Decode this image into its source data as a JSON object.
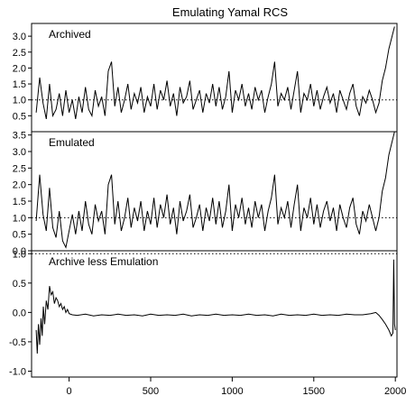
{
  "chart_data": {
    "type": "line",
    "title": "Emulating Yamal RCS",
    "x_range": [
      -230,
      2010
    ],
    "x_ticks": [
      0,
      500,
      1000,
      1500,
      2000
    ],
    "panels": [
      {
        "label": "Archived",
        "ylim": [
          0.0,
          3.4
        ],
        "y_ticks": [
          0.5,
          1.0,
          1.5,
          2.0,
          2.5,
          3.0
        ],
        "reference_line": 1.0,
        "series": {
          "x": [
            -202,
            -180,
            -160,
            -140,
            -120,
            -100,
            -80,
            -60,
            -40,
            -20,
            0,
            20,
            40,
            60,
            80,
            100,
            120,
            140,
            160,
            180,
            200,
            220,
            240,
            260,
            280,
            300,
            320,
            340,
            360,
            380,
            400,
            420,
            440,
            460,
            480,
            500,
            520,
            540,
            560,
            580,
            600,
            620,
            640,
            660,
            680,
            700,
            720,
            740,
            760,
            780,
            800,
            820,
            840,
            860,
            880,
            900,
            920,
            940,
            960,
            980,
            1000,
            1020,
            1040,
            1060,
            1080,
            1100,
            1120,
            1140,
            1160,
            1180,
            1200,
            1220,
            1240,
            1260,
            1280,
            1300,
            1320,
            1340,
            1360,
            1380,
            1400,
            1420,
            1440,
            1460,
            1480,
            1500,
            1520,
            1540,
            1560,
            1580,
            1600,
            1620,
            1640,
            1660,
            1680,
            1700,
            1720,
            1740,
            1760,
            1780,
            1800,
            1820,
            1840,
            1860,
            1880,
            1900,
            1920,
            1940,
            1960,
            1980,
            1995
          ],
          "y": [
            0.6,
            1.7,
            0.9,
            0.4,
            1.5,
            0.5,
            0.7,
            1.2,
            0.5,
            1.3,
            0.6,
            1.0,
            0.4,
            1.1,
            0.6,
            1.4,
            0.7,
            0.5,
            1.3,
            0.8,
            1.1,
            0.5,
            1.9,
            2.2,
            0.8,
            1.4,
            0.6,
            1.0,
            1.5,
            0.7,
            1.2,
            0.9,
            1.4,
            0.6,
            1.1,
            0.8,
            1.5,
            0.7,
            1.3,
            1.0,
            1.6,
            0.8,
            1.2,
            0.5,
            1.4,
            0.9,
            1.1,
            1.6,
            0.7,
            1.0,
            1.3,
            0.6,
            1.2,
            0.9,
            1.5,
            0.8,
            1.4,
            0.7,
            1.1,
            1.9,
            0.6,
            1.3,
            1.0,
            1.5,
            0.8,
            1.2,
            0.7,
            1.4,
            1.0,
            1.3,
            0.6,
            1.1,
            1.5,
            2.2,
            0.8,
            1.2,
            1.0,
            1.4,
            0.7,
            1.3,
            1.9,
            0.6,
            1.2,
            1.0,
            1.5,
            0.8,
            1.3,
            0.7,
            1.1,
            1.4,
            0.9,
            1.2,
            0.6,
            1.3,
            1.0,
            0.7,
            1.2,
            1.5,
            0.8,
            0.5,
            1.1,
            0.9,
            1.3,
            1.0,
            0.6,
            0.9,
            1.6,
            2.0,
            2.6,
            3.0,
            3.3
          ]
        }
      },
      {
        "label": "Emulated",
        "ylim": [
          0.0,
          3.6
        ],
        "y_ticks": [
          0.0,
          0.5,
          1.0,
          1.5,
          2.0,
          2.5,
          3.0,
          3.5
        ],
        "reference_line": 1.0,
        "series": {
          "x": [
            -202,
            -180,
            -160,
            -140,
            -120,
            -100,
            -80,
            -60,
            -40,
            -20,
            0,
            20,
            40,
            60,
            80,
            100,
            120,
            140,
            160,
            180,
            200,
            220,
            240,
            260,
            280,
            300,
            320,
            340,
            360,
            380,
            400,
            420,
            440,
            460,
            480,
            500,
            520,
            540,
            560,
            580,
            600,
            620,
            640,
            660,
            680,
            700,
            720,
            740,
            760,
            780,
            800,
            820,
            840,
            860,
            880,
            900,
            920,
            940,
            960,
            980,
            1000,
            1020,
            1040,
            1060,
            1080,
            1100,
            1120,
            1140,
            1160,
            1180,
            1200,
            1220,
            1240,
            1260,
            1280,
            1300,
            1320,
            1340,
            1360,
            1380,
            1400,
            1420,
            1440,
            1460,
            1480,
            1500,
            1520,
            1540,
            1560,
            1580,
            1600,
            1620,
            1640,
            1660,
            1680,
            1700,
            1720,
            1740,
            1760,
            1780,
            1800,
            1820,
            1840,
            1860,
            1880,
            1900,
            1920,
            1940,
            1960,
            1980,
            1995
          ],
          "y": [
            0.9,
            2.3,
            1.1,
            0.6,
            1.9,
            0.7,
            0.4,
            1.2,
            0.3,
            0.1,
            0.6,
            1.1,
            0.5,
            1.2,
            0.6,
            1.5,
            0.8,
            0.5,
            1.4,
            0.9,
            1.2,
            0.5,
            2.0,
            2.3,
            0.8,
            1.5,
            0.6,
            1.0,
            1.6,
            0.7,
            1.3,
            0.9,
            1.5,
            0.6,
            1.2,
            0.8,
            1.6,
            0.7,
            1.4,
            1.0,
            1.7,
            0.8,
            1.3,
            0.5,
            1.5,
            0.9,
            1.2,
            1.7,
            0.7,
            1.0,
            1.4,
            0.6,
            1.3,
            0.9,
            1.6,
            0.8,
            1.5,
            0.7,
            1.2,
            2.0,
            0.6,
            1.4,
            1.0,
            1.6,
            0.8,
            1.3,
            0.7,
            1.5,
            1.0,
            1.4,
            0.6,
            1.2,
            1.6,
            2.3,
            0.8,
            1.3,
            1.0,
            1.5,
            0.7,
            1.4,
            2.0,
            0.6,
            1.3,
            1.0,
            1.6,
            0.8,
            1.4,
            0.7,
            1.2,
            1.5,
            0.9,
            1.3,
            0.6,
            1.4,
            1.0,
            0.7,
            1.3,
            1.6,
            0.8,
            0.5,
            1.2,
            0.9,
            1.4,
            1.0,
            0.6,
            1.0,
            1.8,
            2.2,
            2.9,
            3.3,
            3.6
          ]
        }
      },
      {
        "label": "Archive less Emulation",
        "ylim": [
          -1.1,
          1.05
        ],
        "y_ticks": [
          -1.0,
          -0.5,
          0.0,
          0.5,
          1.0
        ],
        "reference_line": 1.0,
        "series": {
          "x": [
            -202,
            -195,
            -188,
            -180,
            -172,
            -165,
            -158,
            -150,
            -140,
            -130,
            -120,
            -110,
            -100,
            -90,
            -80,
            -70,
            -60,
            -50,
            -40,
            -30,
            -20,
            -10,
            0,
            20,
            50,
            100,
            150,
            200,
            250,
            300,
            350,
            400,
            450,
            500,
            550,
            600,
            650,
            700,
            750,
            800,
            850,
            900,
            950,
            1000,
            1050,
            1100,
            1150,
            1200,
            1250,
            1300,
            1350,
            1400,
            1450,
            1500,
            1550,
            1600,
            1650,
            1700,
            1750,
            1800,
            1850,
            1880,
            1900,
            1920,
            1940,
            1960,
            1975,
            1985,
            1990,
            1995,
            2000
          ],
          "y": [
            -0.3,
            -0.7,
            -0.2,
            -0.55,
            -0.1,
            -0.4,
            0.1,
            -0.2,
            0.2,
            0.05,
            0.45,
            0.3,
            0.35,
            0.15,
            0.25,
            0.2,
            0.1,
            0.15,
            0.05,
            0.1,
            0.0,
            0.05,
            -0.02,
            -0.04,
            -0.05,
            -0.03,
            -0.06,
            -0.04,
            -0.05,
            -0.03,
            -0.05,
            -0.04,
            -0.06,
            -0.03,
            -0.05,
            -0.04,
            -0.05,
            -0.03,
            -0.06,
            -0.04,
            -0.05,
            -0.03,
            -0.05,
            -0.04,
            -0.05,
            -0.03,
            -0.05,
            -0.04,
            -0.06,
            -0.03,
            -0.05,
            -0.04,
            -0.05,
            -0.03,
            -0.05,
            -0.04,
            -0.05,
            -0.03,
            -0.04,
            -0.04,
            -0.02,
            0.0,
            -0.05,
            -0.12,
            -0.2,
            -0.3,
            -0.4,
            -0.35,
            0.9,
            -0.2,
            -0.3
          ]
        }
      }
    ]
  }
}
